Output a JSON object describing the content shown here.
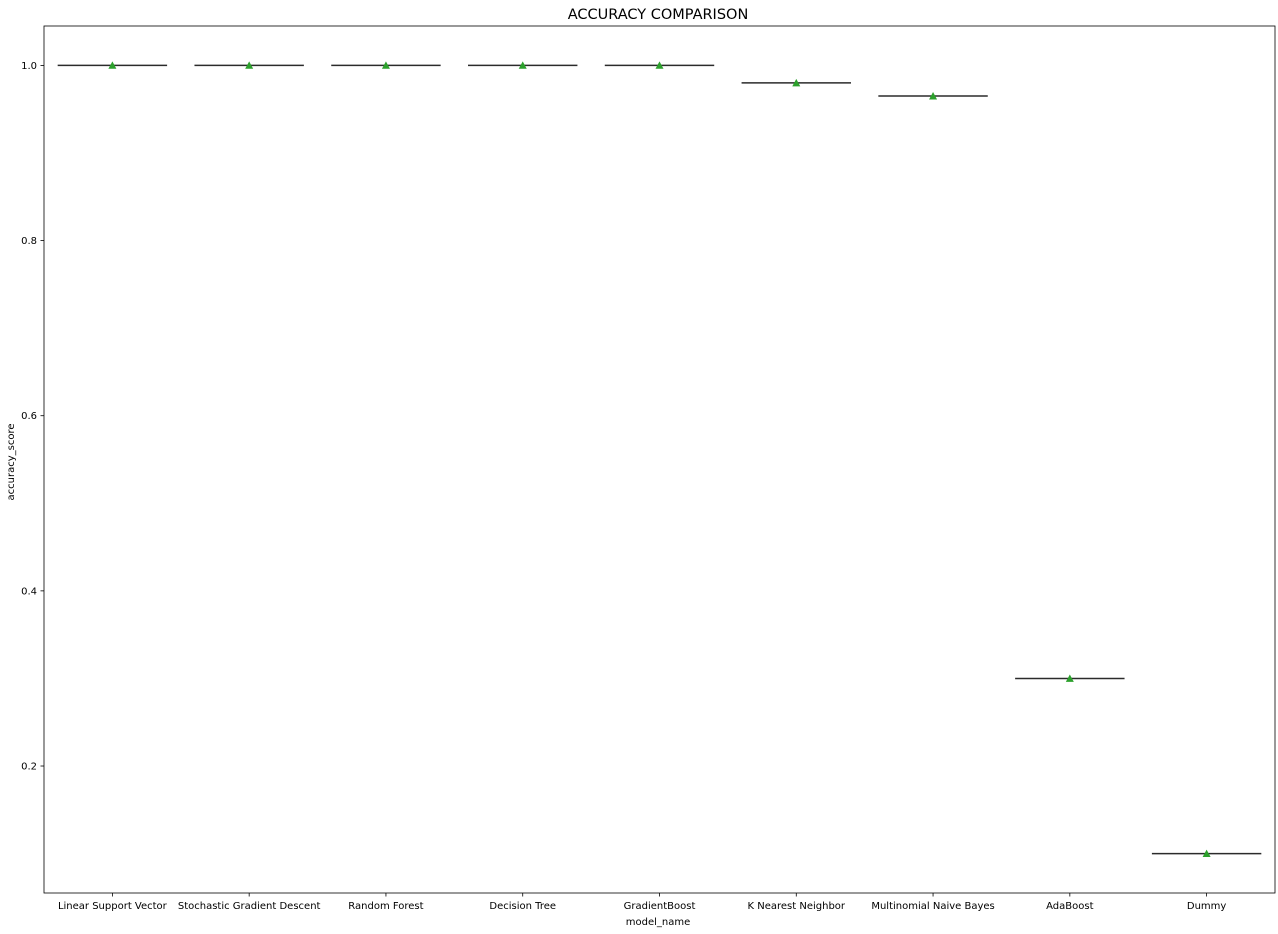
{
  "chart_data": {
    "type": "box",
    "title": "ACCURACY COMPARISON",
    "xlabel": "model_name",
    "ylabel": "accuracy_score",
    "categories": [
      "Linear Support Vector",
      "Stochastic Gradient Descent",
      "Random Forest",
      "Decision Tree",
      "GradientBoost",
      "K Nearest Neighbor",
      "Multinomial Naive Bayes",
      "AdaBoost",
      "Dummy"
    ],
    "medians": [
      1.0,
      1.0,
      1.0,
      1.0,
      1.0,
      0.98,
      0.965,
      0.3,
      0.1
    ],
    "means": [
      1.0,
      1.0,
      1.0,
      1.0,
      1.0,
      0.98,
      0.965,
      0.3,
      0.1
    ],
    "ylim": [
      0.055,
      1.045
    ],
    "yticks": [
      0.2,
      0.4,
      0.6,
      0.8,
      1.0
    ],
    "ytick_labels": [
      "0.2",
      "0.4",
      "0.6",
      "0.8",
      "1.0"
    ],
    "grid": false,
    "colors": {
      "median_line": "#2b2b2b",
      "mean_marker": "#2ca02c",
      "axes": "#000000"
    }
  }
}
